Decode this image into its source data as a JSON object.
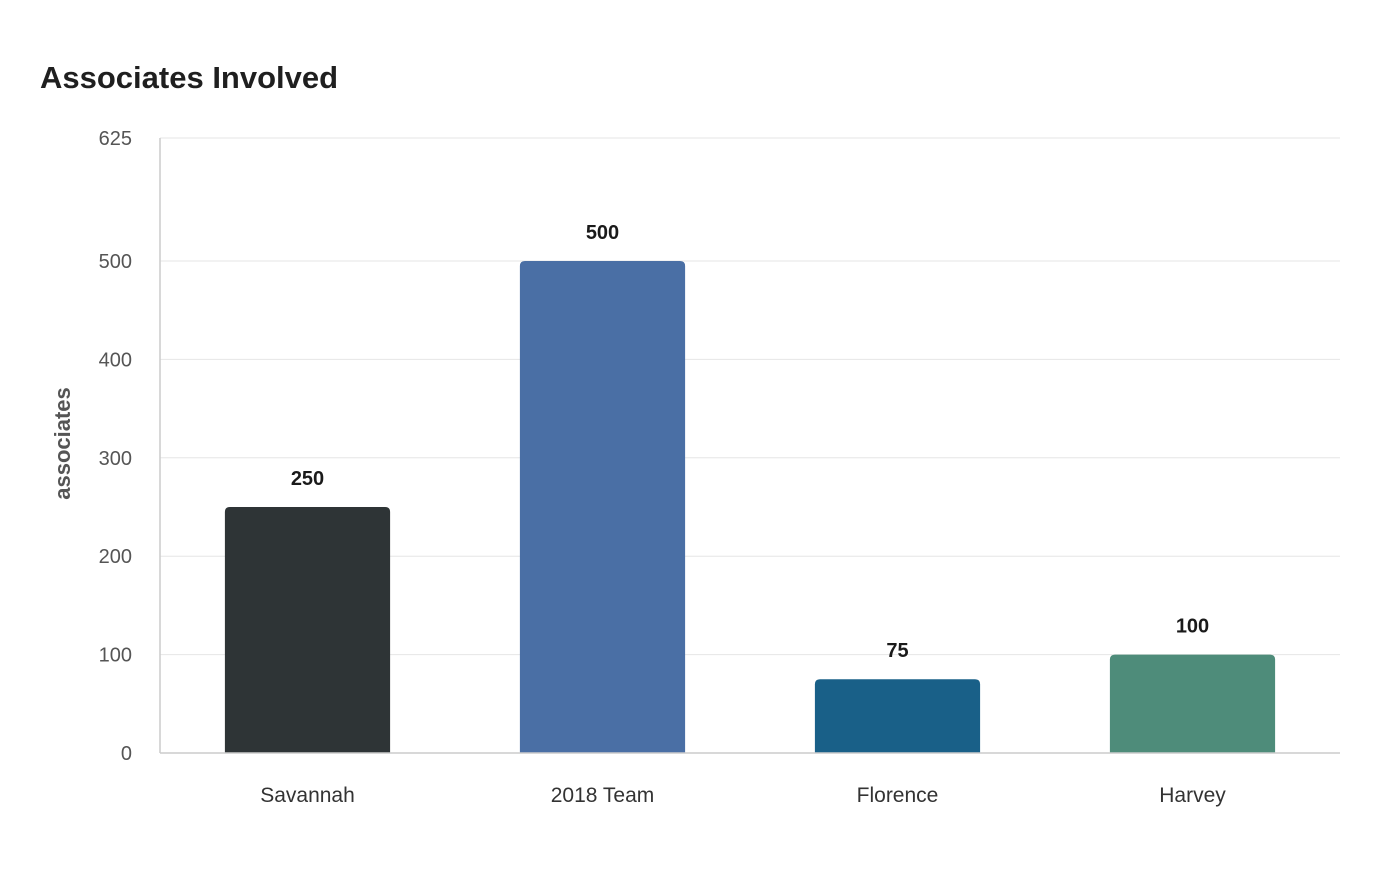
{
  "chart_data": {
    "type": "bar",
    "title": "Associates Involved",
    "xlabel": "",
    "ylabel": "associates",
    "categories": [
      "Savannah",
      "2018 Team",
      "Florence",
      "Harvey"
    ],
    "values": [
      250,
      500,
      75,
      100
    ],
    "bar_colors": [
      "#2e3436",
      "#4a6fa5",
      "#196088",
      "#4e8c7a"
    ],
    "ylim": [
      0,
      625
    ],
    "yticks": [
      0,
      100,
      200,
      300,
      400,
      500,
      625
    ],
    "grid": true,
    "legend": "none",
    "data_labels": true
  }
}
